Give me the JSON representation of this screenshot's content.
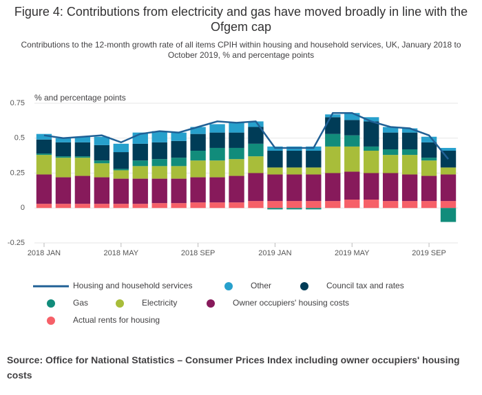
{
  "chart_data": {
    "type": "bar",
    "title": "Figure 4: Contributions from electricity and gas have moved broadly in line with the Ofgem cap",
    "subtitle": "Contributions to the 12-month growth rate of all items CPIH within housing and household services, UK, January 2018 to October 2019, % and percentage points",
    "y_label": "% and percentage points",
    "source": "Source: Office for National Statistics – Consumer Prices Index including owner occupiers' housing costs",
    "categories": [
      "2018 JAN",
      null,
      null,
      null,
      "2018 MAY",
      null,
      null,
      null,
      "2018 SEP",
      null,
      null,
      null,
      "2019 JAN",
      null,
      null,
      null,
      "2019 MAY",
      null,
      null,
      null,
      "2019 SEP",
      null
    ],
    "ylim": [
      -0.25,
      0.75
    ],
    "yticks": [
      -0.25,
      0,
      0.25,
      0.5,
      0.75
    ],
    "grid": true,
    "series": [
      {
        "name": "Housing and household services",
        "type": "line",
        "color": "#206095",
        "values": [
          0.52,
          0.5,
          0.51,
          0.52,
          0.47,
          0.53,
          0.55,
          0.54,
          0.58,
          0.62,
          0.61,
          0.62,
          0.43,
          0.43,
          0.43,
          0.68,
          0.68,
          0.62,
          0.58,
          0.57,
          0.52,
          0.35
        ]
      },
      {
        "name": "Other",
        "type": "bar",
        "color": "#27a0cc",
        "values": [
          0.04,
          0.03,
          0.04,
          0.06,
          0.06,
          0.08,
          0.08,
          0.06,
          0.05,
          0.06,
          0.07,
          0.04,
          0.03,
          0.03,
          0.03,
          0.02,
          0.05,
          0.03,
          0.04,
          0.03,
          0.04,
          0.02
        ]
      },
      {
        "name": "Council tax and rates",
        "type": "bar",
        "color": "#003c57",
        "values": [
          0.1,
          0.1,
          0.1,
          0.11,
          0.12,
          0.12,
          0.12,
          0.12,
          0.12,
          0.11,
          0.11,
          0.12,
          0.12,
          0.12,
          0.12,
          0.12,
          0.11,
          0.18,
          0.12,
          0.12,
          0.11,
          0.12
        ]
      },
      {
        "name": "Gas",
        "type": "bar",
        "color": "#118c7b",
        "values": [
          0.01,
          0.01,
          0.01,
          0.02,
          0.01,
          0.04,
          0.05,
          0.06,
          0.07,
          0.09,
          0.08,
          0.09,
          -0.01,
          -0.01,
          -0.01,
          0.09,
          0.08,
          0.03,
          0.04,
          0.04,
          0.02,
          -0.1
        ]
      },
      {
        "name": "Electricity",
        "type": "bar",
        "color": "#a8bd3a",
        "values": [
          0.14,
          0.14,
          0.13,
          0.1,
          0.06,
          0.09,
          0.09,
          0.09,
          0.12,
          0.12,
          0.12,
          0.12,
          0.05,
          0.05,
          0.05,
          0.19,
          0.18,
          0.16,
          0.13,
          0.14,
          0.11,
          0.05
        ]
      },
      {
        "name": "Owner occupiers' housing costs",
        "type": "bar",
        "color": "#871a5b",
        "values": [
          0.21,
          0.19,
          0.2,
          0.19,
          0.18,
          0.18,
          0.175,
          0.175,
          0.18,
          0.18,
          0.19,
          0.2,
          0.19,
          0.19,
          0.19,
          0.2,
          0.2,
          0.19,
          0.2,
          0.19,
          0.18,
          0.19
        ]
      },
      {
        "name": "Actual rents for housing",
        "type": "bar",
        "color": "#f66068",
        "values": [
          0.03,
          0.03,
          0.03,
          0.03,
          0.03,
          0.03,
          0.035,
          0.035,
          0.04,
          0.04,
          0.04,
          0.05,
          0.05,
          0.05,
          0.05,
          0.05,
          0.06,
          0.06,
          0.05,
          0.05,
          0.05,
          0.05
        ]
      }
    ]
  }
}
